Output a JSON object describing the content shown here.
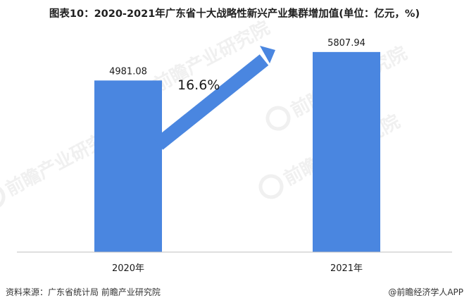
{
  "title": "图表10：2020-2021年广东省十大战略性新兴产业集群增加值(单位：亿元，%)",
  "source_text": "资料来源：广东省统计局 前瞻产业研究院",
  "brand_text": "@前瞻经济学人APP",
  "watermark_text": "前瞻产业研究院",
  "colors": {
    "bar": "#4a86e0",
    "arrow": "#4a86e0",
    "axis": "#bfbfbf"
  },
  "chart_data": {
    "type": "bar",
    "categories": [
      "2020年",
      "2021年"
    ],
    "values": [
      4981.08,
      5807.94
    ],
    "value_labels": [
      "4981.08",
      "5807.94"
    ],
    "title": "图表10：2020-2021年广东省十大战略性新兴产业集群增加值(单位：亿元，%)",
    "xlabel": "",
    "ylabel": "",
    "ylim": [
      0,
      6500
    ],
    "grid": false,
    "legend": "none",
    "annotation": {
      "text": "16.6%",
      "type": "growth-arrow"
    }
  }
}
